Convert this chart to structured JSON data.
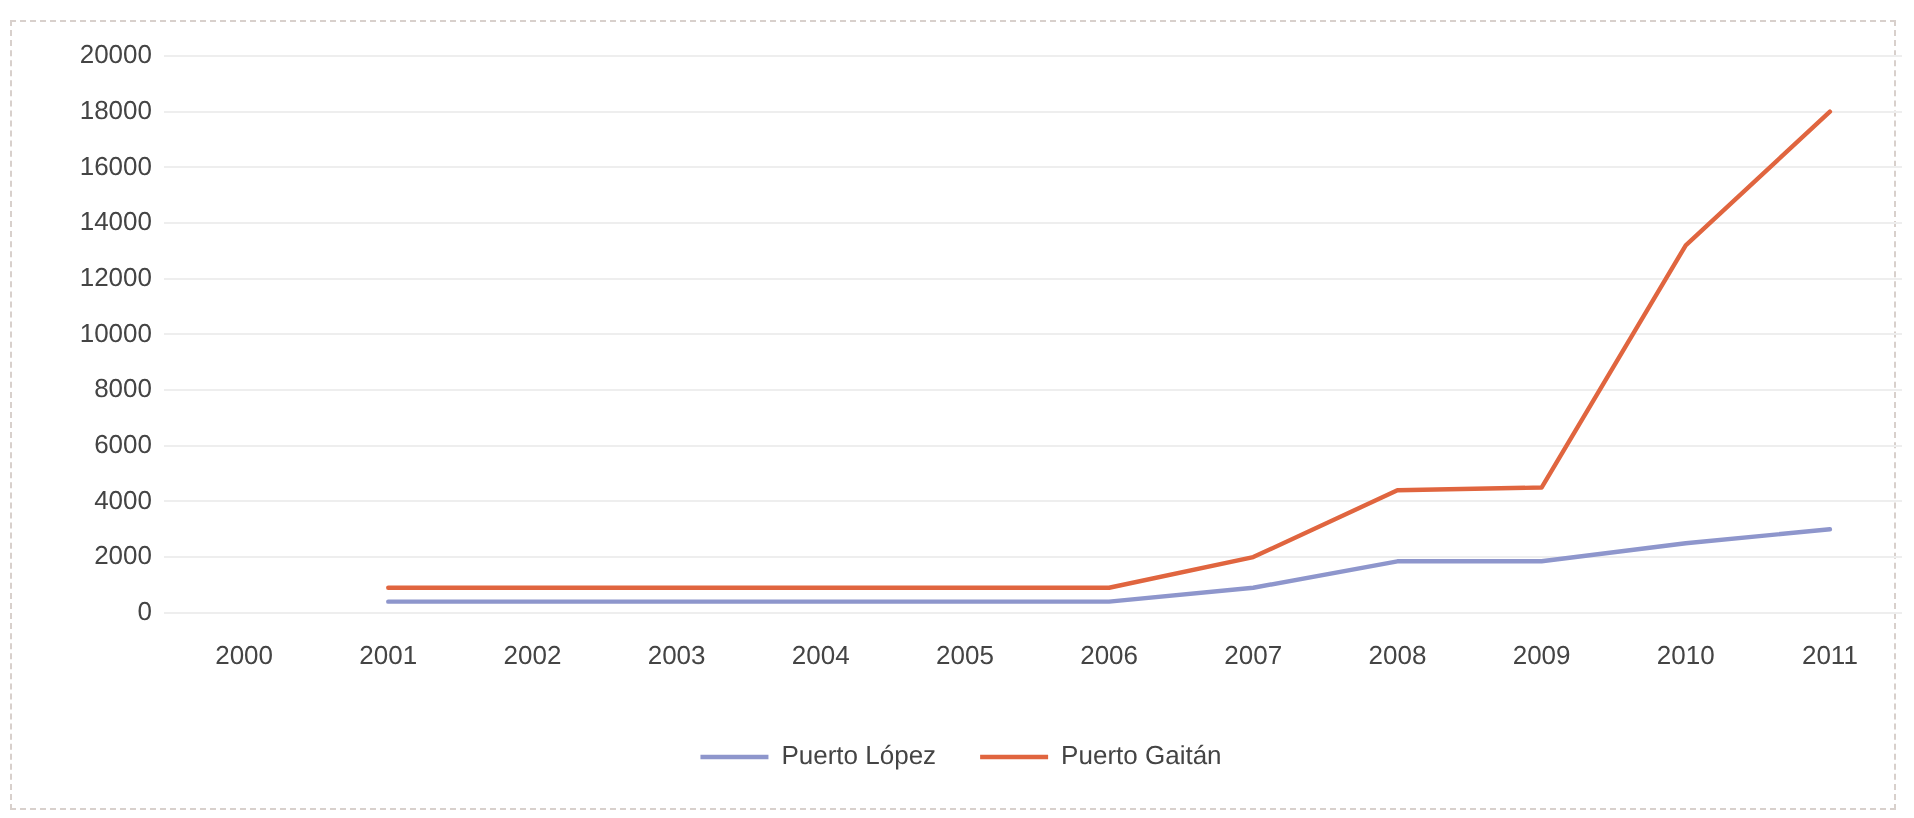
{
  "chart_data": {
    "type": "line",
    "categories": [
      "2000",
      "2001",
      "2002",
      "2003",
      "2004",
      "2005",
      "2006",
      "2007",
      "2008",
      "2009",
      "2010",
      "2011"
    ],
    "series": [
      {
        "name": "Puerto López",
        "color": "#8e96cc",
        "values": [
          null,
          400,
          400,
          400,
          400,
          400,
          400,
          900,
          1850,
          1850,
          2500,
          3000
        ]
      },
      {
        "name": "Puerto Gaitán",
        "color": "#e0653f",
        "values": [
          null,
          900,
          900,
          900,
          900,
          900,
          900,
          2000,
          4400,
          4500,
          13200,
          18000
        ]
      }
    ],
    "ylim": [
      0,
      20000
    ],
    "yticks": [
      0,
      2000,
      4000,
      6000,
      8000,
      10000,
      12000,
      14000,
      16000,
      18000,
      20000
    ],
    "grid": "y",
    "legend": "bottom",
    "marker": "none",
    "line_style": "solid"
  }
}
